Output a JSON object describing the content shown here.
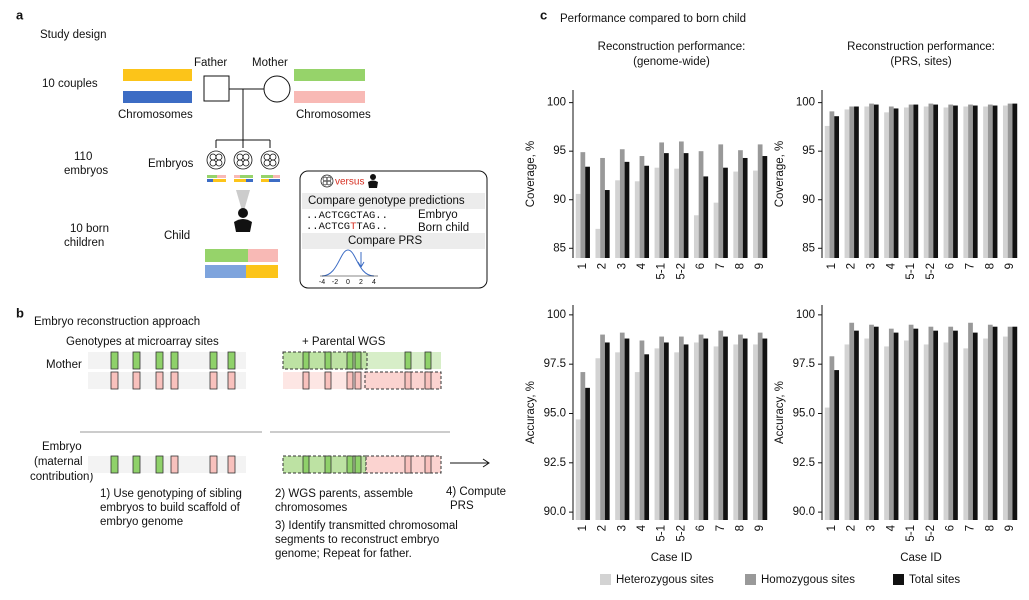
{
  "panel_a": {
    "label": "a",
    "title": "Study design",
    "couples": "10 couples",
    "father": "Father",
    "mother": "Mother",
    "chromosomes_left": "Chromosomes",
    "chromosomes_right": "Chromosomes",
    "embryo_count": [
      "110",
      "embryos"
    ],
    "embryos": "Embryos",
    "children_count": [
      "10 born",
      "children"
    ],
    "child": "Child",
    "comparison": {
      "versus": "versus",
      "title": "Compare genotype predictions",
      "sequence_embryo": "..ACTCGCTAG..",
      "sequence_child": [
        "..ACTCG",
        "T",
        "TAG.."
      ],
      "embryo": "Embryo",
      "born_child": "Born child",
      "prs": "Compare PRS",
      "axis_ticks": [
        "-4",
        "-2",
        "0",
        "2",
        "4"
      ]
    }
  },
  "panel_b": {
    "label": "b",
    "title": "Embryo reconstruction approach",
    "left_heading": "Genotypes at microarray sites",
    "right_heading": "+ Parental WGS",
    "mother": "Mother",
    "embryo": [
      "Embryo",
      "(maternal",
      "contribution)"
    ],
    "step1": [
      "1) Use genotyping of sibling",
      "embryos to build scaffold of",
      "embryo genome"
    ],
    "step2": [
      "2) WGS parents, assemble",
      "chromosomes"
    ],
    "step3": [
      "3) Identify transmitted chromosomal",
      "segments to reconstruct embryo",
      "genome; Repeat for father."
    ],
    "step4": [
      "4) Compute",
      "PRS"
    ]
  },
  "panel_c": {
    "label": "c",
    "title": "Performance compared to born child"
  },
  "chart_data": [
    {
      "type": "bar",
      "title": [
        "Reconstruction performance:",
        "(genome-wide)"
      ],
      "ylabel": "Coverage, %",
      "categories": [
        "1",
        "2",
        "3",
        "4",
        "5-1",
        "5-2",
        "6",
        "7",
        "8",
        "9"
      ],
      "ylim": [
        84,
        101.3
      ],
      "yticks": [
        85,
        90,
        95,
        100
      ],
      "series": [
        {
          "name": "Heterozygous sites",
          "color": "#d3d3d3",
          "values": [
            90.6,
            87.0,
            92.0,
            91.9,
            93.3,
            93.2,
            88.4,
            89.7,
            92.9,
            93.0
          ]
        },
        {
          "name": "Homozygous sites",
          "color": "#999999",
          "values": [
            94.9,
            94.3,
            95.2,
            94.5,
            95.9,
            96.0,
            95.0,
            95.7,
            95.1,
            95.7
          ]
        },
        {
          "name": "Total sites",
          "color": "#111111",
          "values": [
            93.4,
            91.0,
            93.9,
            93.5,
            94.8,
            94.8,
            92.4,
            93.3,
            94.3,
            94.5
          ]
        }
      ]
    },
    {
      "type": "bar",
      "title": [
        "Reconstruction performance:",
        "(PRS, sites)"
      ],
      "ylabel": "Coverage, %",
      "categories": [
        "1",
        "2",
        "3",
        "4",
        "5-1",
        "5-2",
        "6",
        "7",
        "8",
        "9"
      ],
      "ylim": [
        84,
        101.3
      ],
      "yticks": [
        85,
        90,
        95,
        100
      ],
      "series": [
        {
          "color": "#d3d3d3",
          "values": [
            97.6,
            99.3,
            99.6,
            99.0,
            99.5,
            99.6,
            99.5,
            99.6,
            99.6,
            99.7
          ]
        },
        {
          "color": "#999999",
          "values": [
            99.1,
            99.6,
            99.9,
            99.6,
            99.8,
            99.9,
            99.8,
            99.8,
            99.8,
            99.9
          ]
        },
        {
          "color": "#111111",
          "values": [
            98.6,
            99.6,
            99.8,
            99.4,
            99.8,
            99.8,
            99.7,
            99.7,
            99.7,
            99.9
          ]
        }
      ]
    },
    {
      "type": "bar",
      "ylabel": "Accuracy, %",
      "xlabel": "Case ID",
      "categories": [
        "1",
        "2",
        "3",
        "4",
        "5-1",
        "5-2",
        "6",
        "7",
        "8",
        "9"
      ],
      "ylim": [
        89.6,
        100.5
      ],
      "yticks": [
        {
          "value": 90,
          "label": "90.0"
        },
        92.5,
        {
          "value": 95,
          "label": "95.0"
        },
        97.5,
        100
      ],
      "series": [
        {
          "color": "#d3d3d3",
          "values": [
            94.7,
            97.8,
            98.1,
            97.1,
            98.3,
            98.1,
            98.6,
            98.4,
            98.5,
            98.5
          ]
        },
        {
          "color": "#999999",
          "values": [
            97.1,
            99.0,
            99.1,
            98.7,
            98.9,
            98.9,
            99.0,
            99.2,
            99.0,
            99.1
          ]
        },
        {
          "color": "#111111",
          "values": [
            96.3,
            98.6,
            98.8,
            98.0,
            98.6,
            98.5,
            98.8,
            98.9,
            98.8,
            98.8
          ]
        }
      ]
    },
    {
      "type": "bar",
      "ylabel": "Accuracy, %",
      "xlabel": "Case ID",
      "categories": [
        "1",
        "2",
        "3",
        "4",
        "5-1",
        "5-2",
        "6",
        "7",
        "8",
        "9"
      ],
      "ylim": [
        89.6,
        100.5
      ],
      "yticks": [
        {
          "value": 90,
          "label": "90.0"
        },
        92.5,
        {
          "value": 95,
          "label": "95.0"
        },
        97.5,
        100
      ],
      "series": [
        {
          "color": "#d3d3d3",
          "values": [
            95.3,
            98.5,
            98.8,
            98.4,
            98.7,
            98.5,
            98.6,
            98.3,
            98.8,
            98.9
          ]
        },
        {
          "color": "#999999",
          "values": [
            97.9,
            99.6,
            99.5,
            99.3,
            99.5,
            99.4,
            99.4,
            99.6,
            99.5,
            99.4
          ]
        },
        {
          "color": "#111111",
          "values": [
            97.2,
            99.2,
            99.4,
            99.1,
            99.3,
            99.2,
            99.2,
            99.1,
            99.4,
            99.4
          ]
        }
      ]
    }
  ]
}
